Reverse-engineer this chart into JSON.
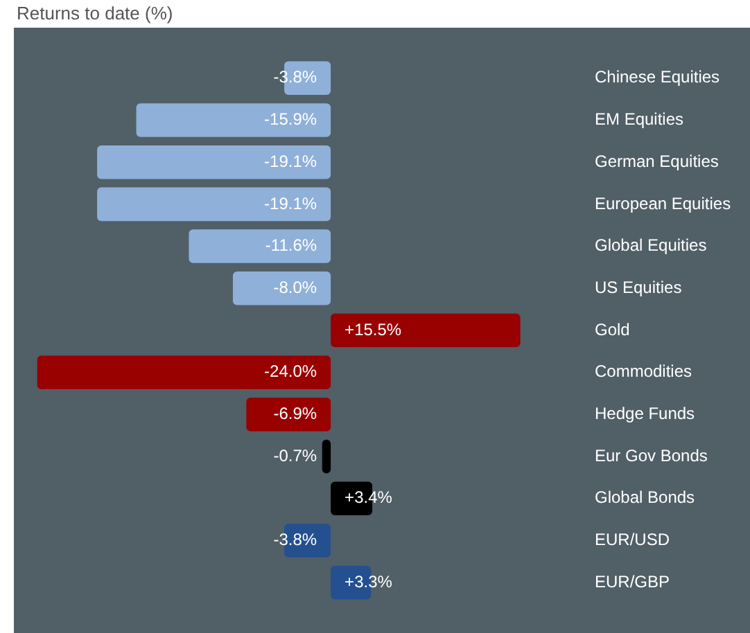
{
  "chart_data": {
    "type": "bar",
    "orientation": "horizontal",
    "title": "Returns to date (%)",
    "categories": [
      "Chinese Equities",
      "EM Equities",
      "German Equities",
      "European Equities",
      "Global Equities",
      "US Equities",
      "Gold",
      "Commodities",
      "Hedge Funds",
      "Eur Gov Bonds",
      "Global Bonds",
      "EUR/USD",
      "EUR/GBP"
    ],
    "values": [
      -3.8,
      -15.9,
      -19.1,
      -19.1,
      -11.6,
      -8.0,
      15.5,
      -24.0,
      -6.9,
      -0.7,
      3.4,
      -3.8,
      3.3
    ],
    "value_labels": [
      "-3.8%",
      "-15.9%",
      "-19.1%",
      "-19.1%",
      "-11.6%",
      "-8.0%",
      "+15.5%",
      "-24.0%",
      "-6.9%",
      "-0.7%",
      "+3.4%",
      "-3.8%",
      "+3.3%"
    ],
    "colors": [
      "#8fb0d8",
      "#8fb0d8",
      "#8fb0d8",
      "#8fb0d8",
      "#8fb0d8",
      "#8fb0d8",
      "#990000",
      "#990000",
      "#990000",
      "#000000",
      "#000000",
      "#24508f",
      "#24508f"
    ],
    "grid": false,
    "legend": false
  }
}
